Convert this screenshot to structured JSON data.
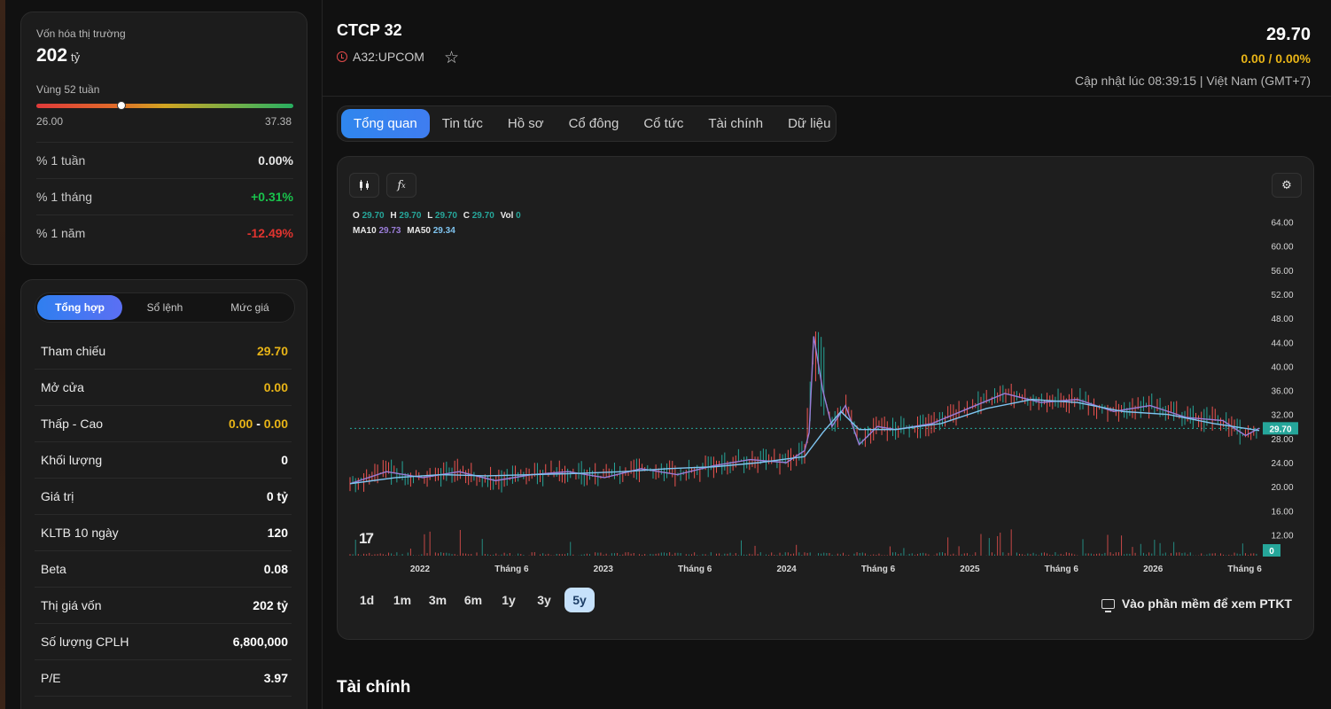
{
  "market_cap": {
    "label": "Vốn hóa thị trường",
    "value": "202",
    "unit": "tỷ"
  },
  "week52": {
    "label": "Vùng 52 tuần",
    "min": "26.00",
    "max": "37.38",
    "current_fraction": 0.33
  },
  "performance": [
    {
      "label": "% 1 tuần",
      "value": "0.00%",
      "tone": "neutral"
    },
    {
      "label": "% 1 tháng",
      "value": "+0.31%",
      "tone": "up"
    },
    {
      "label": "% 1 năm",
      "value": "-12.49%",
      "tone": "down"
    }
  ],
  "summary_tabs": [
    {
      "label": "Tổng hợp",
      "active": true
    },
    {
      "label": "Sổ lệnh",
      "active": false
    },
    {
      "label": "Mức giá",
      "active": false
    }
  ],
  "summary_rows": [
    {
      "label": "Tham chiếu",
      "value": "29.70",
      "tone": "yellow"
    },
    {
      "label": "Mở cửa",
      "value": "0.00",
      "tone": "yellow"
    },
    {
      "label": "Thấp - Cao",
      "value_low": "0.00",
      "sep": "-",
      "value_high": "0.00",
      "tone": "yellow"
    },
    {
      "label": "Khối lượng",
      "value": "0",
      "tone": "neutral"
    },
    {
      "label": "Giá trị",
      "value": "0 tỷ",
      "tone": "neutral"
    },
    {
      "label": "KLTB 10 ngày",
      "value": "120",
      "tone": "neutral"
    },
    {
      "label": "Beta",
      "value": "0.08",
      "tone": "neutral"
    },
    {
      "label": "Thị giá vốn",
      "value": "202 tỷ",
      "tone": "neutral"
    },
    {
      "label": "Số lượng CPLH",
      "value": "6,800,000",
      "tone": "neutral"
    },
    {
      "label": "P/E",
      "value": "3.97",
      "tone": "neutral"
    }
  ],
  "header": {
    "name": "CTCP 32",
    "ticker": "A32:UPCOM",
    "price": "29.70",
    "change": "0.00 / 0.00%",
    "updated": "Cập nhật lúc 08:39:15 | Việt Nam (GMT+7)"
  },
  "tabs": [
    {
      "label": "Tổng quan",
      "active": true
    },
    {
      "label": "Tin tức",
      "active": false
    },
    {
      "label": "Hồ sơ",
      "active": false
    },
    {
      "label": "Cổ đông",
      "active": false
    },
    {
      "label": "Cổ tức",
      "active": false
    },
    {
      "label": "Tài chính",
      "active": false
    },
    {
      "label": "Dữ liệu",
      "active": false
    }
  ],
  "legend": {
    "o_label": "O",
    "o": "29.70",
    "h_label": "H",
    "h": "29.70",
    "l_label": "L",
    "l": "29.70",
    "c_label": "C",
    "c": "29.70",
    "vol_label": "Vol",
    "vol": "0",
    "ma10_label": "MA10",
    "ma10": "29.73",
    "ma50_label": "MA50",
    "ma50": "29.34"
  },
  "chart_data": {
    "type": "line",
    "y_ticks": [
      "64.00",
      "60.00",
      "56.00",
      "52.00",
      "48.00",
      "44.00",
      "40.00",
      "36.00",
      "32.00",
      "28.00",
      "24.00",
      "20.00",
      "16.00",
      "12.00"
    ],
    "ylim": [
      10,
      66
    ],
    "x_ticks": [
      "2022",
      "Tháng 6",
      "2023",
      "Tháng 6",
      "2024",
      "Tháng 6",
      "2025",
      "Tháng 6",
      "2026",
      "Tháng 6"
    ],
    "last_price_label": "29.70",
    "last_volume_label": "0",
    "series": [
      {
        "name": "MA10",
        "color": "#9a7dd8",
        "x": [
          0,
          0.04,
          0.08,
          0.12,
          0.16,
          0.2,
          0.24,
          0.28,
          0.32,
          0.36,
          0.4,
          0.44,
          0.48,
          0.5,
          0.505,
          0.51,
          0.52,
          0.53,
          0.545,
          0.56,
          0.58,
          0.6,
          0.64,
          0.68,
          0.72,
          0.76,
          0.8,
          0.84,
          0.88,
          0.92,
          0.96,
          0.985,
          1.0
        ],
        "values": [
          20.5,
          22.5,
          21.5,
          22.5,
          21.0,
          22.0,
          22.5,
          21.5,
          23.0,
          22.0,
          23.5,
          24.5,
          24.0,
          26.0,
          29.0,
          45.0,
          36.0,
          30.0,
          33.5,
          27.0,
          30.0,
          29.5,
          30.5,
          33.0,
          35.5,
          34.0,
          34.5,
          32.5,
          33.5,
          31.5,
          31.0,
          28.5,
          29.73
        ]
      },
      {
        "name": "MA50",
        "color": "#7fc4f0",
        "x": [
          0,
          0.05,
          0.1,
          0.15,
          0.2,
          0.25,
          0.3,
          0.35,
          0.4,
          0.45,
          0.5,
          0.52,
          0.54,
          0.56,
          0.6,
          0.65,
          0.7,
          0.75,
          0.8,
          0.85,
          0.9,
          0.95,
          1.0
        ],
        "values": [
          20.5,
          21.5,
          22.0,
          21.8,
          22.0,
          22.2,
          22.5,
          23.0,
          23.3,
          24.0,
          25.0,
          29.0,
          32.5,
          29.5,
          29.5,
          30.5,
          33.0,
          34.5,
          34.0,
          32.5,
          32.0,
          30.5,
          29.34
        ]
      }
    ],
    "ref_line": 29.7,
    "grid": false
  }
}
